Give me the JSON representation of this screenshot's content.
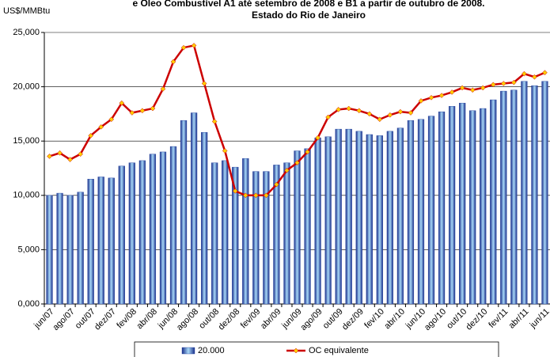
{
  "chart_data": {
    "type": "bar",
    "title": [
      "e Óleo Combustível A1 até setembro de 2008 e B1 a partir de outubro de 2008.",
      "Estado do Rio de Janeiro"
    ],
    "y_label": "US$/MMBtu",
    "categories": [
      "jun/07",
      null,
      "ago/07",
      null,
      "out/07",
      null,
      "dez/07",
      null,
      "fev/08",
      null,
      "abr/08",
      null,
      "jun/08",
      null,
      "ago/08",
      null,
      "out/08",
      null,
      "dez/08",
      null,
      "fev/09",
      null,
      "abr/09",
      null,
      "jun/09",
      null,
      "ago/09",
      null,
      "out/09",
      null,
      "dez/09",
      null,
      "fev/10",
      null,
      "abr/10",
      null,
      "jun/10",
      null,
      "ago/10",
      null,
      "out/10",
      null,
      "dez/10",
      null,
      "fev/11",
      null,
      "abr/11",
      null,
      "jun/11"
    ],
    "series": [
      {
        "name": "20.000",
        "type": "bar",
        "color": "#1f3f9f",
        "values": [
          10.0,
          10.2,
          10.0,
          10.3,
          11.5,
          11.7,
          11.6,
          12.7,
          13.0,
          13.2,
          13.8,
          14.0,
          14.5,
          16.9,
          17.6,
          15.8,
          13.0,
          13.2,
          12.6,
          13.4,
          12.2,
          12.2,
          12.8,
          13.0,
          14.1,
          14.3,
          15.3,
          15.4,
          16.1,
          16.1,
          15.9,
          15.6,
          15.5,
          15.9,
          16.2,
          16.9,
          17.0,
          17.3,
          17.7,
          18.2,
          18.5,
          17.8,
          18.0,
          18.8,
          19.6,
          19.7,
          20.5,
          20.1,
          20.5
        ]
      },
      {
        "name": "OC equivalente",
        "type": "line",
        "color": "#cc0000",
        "marker_color": "#ffcc00",
        "values": [
          13.6,
          13.9,
          13.3,
          13.8,
          15.5,
          16.3,
          17.0,
          18.5,
          17.6,
          17.8,
          18.0,
          19.8,
          22.3,
          23.6,
          23.8,
          20.3,
          16.8,
          14.1,
          10.4,
          10.0,
          10.0,
          10.0,
          11.0,
          12.3,
          13.0,
          14.0,
          15.3,
          17.2,
          17.9,
          18.0,
          17.8,
          17.5,
          17.0,
          17.4,
          17.7,
          17.6,
          18.7,
          19.0,
          19.2,
          19.5,
          19.9,
          19.7,
          19.9,
          20.2,
          20.3,
          20.4,
          21.2,
          20.9,
          21.3
        ]
      }
    ],
    "ylim": [
      0,
      25
    ],
    "yticks": [
      {
        "value": 0,
        "label": "0,000"
      },
      {
        "value": 5,
        "label": "5,000"
      },
      {
        "value": 10,
        "label": "10,000"
      },
      {
        "value": 15,
        "label": "15,000"
      },
      {
        "value": 20,
        "label": "20,000"
      },
      {
        "value": 25,
        "label": "25,000"
      }
    ],
    "grid": true,
    "legend": "bottom"
  }
}
